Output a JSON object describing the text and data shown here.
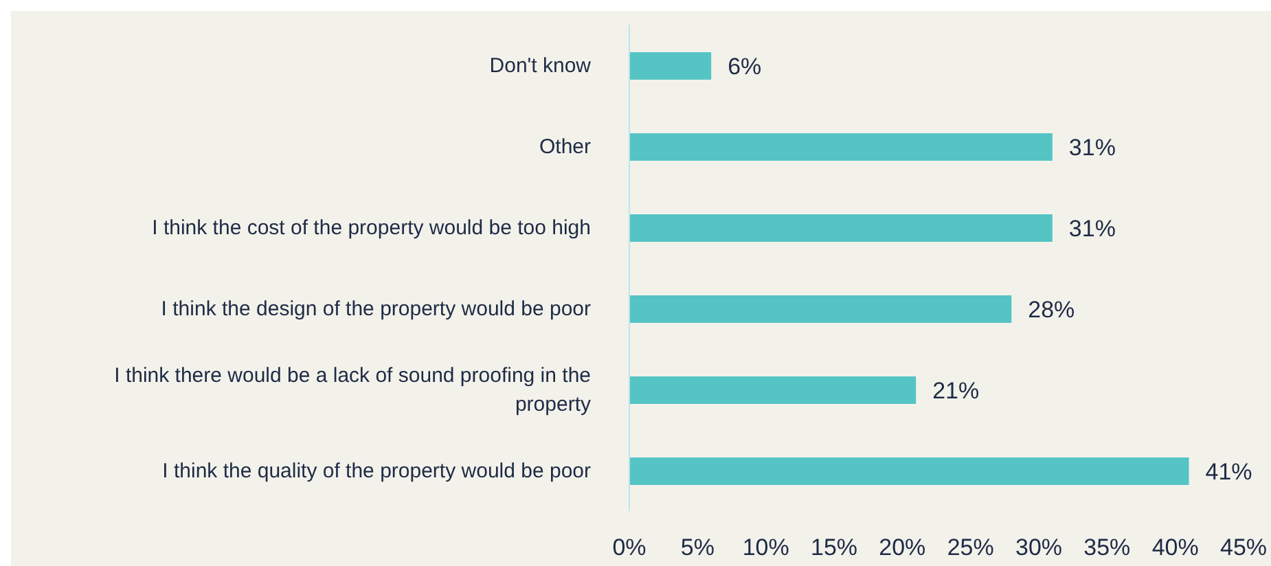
{
  "chart_data": {
    "type": "bar",
    "orientation": "horizontal",
    "categories": [
      "Don't know",
      "Other",
      "I think the cost of the property would be too high",
      "I think the design of the property would be poor",
      "I think there would be a lack of sound proofing in the property",
      "I think the quality of the property would be poor"
    ],
    "values": [
      6,
      31,
      31,
      28,
      21,
      41
    ],
    "value_labels": [
      "6%",
      "31%",
      "31%",
      "28%",
      "21%",
      "41%"
    ],
    "color": "#55c4c4",
    "xlim": [
      0,
      45
    ],
    "xticks": [
      {
        "value": 0,
        "label": "0%"
      },
      {
        "value": 5,
        "label": "5%"
      },
      {
        "value": 10,
        "label": "10%"
      },
      {
        "value": 15,
        "label": "15%"
      },
      {
        "value": 20,
        "label": "20%"
      },
      {
        "value": 25,
        "label": "25%"
      },
      {
        "value": 30,
        "label": "30%"
      },
      {
        "value": 35,
        "label": "35%"
      },
      {
        "value": 40,
        "label": "40%"
      },
      {
        "value": 45,
        "label": "45%"
      }
    ],
    "grid": false,
    "legend": false
  }
}
